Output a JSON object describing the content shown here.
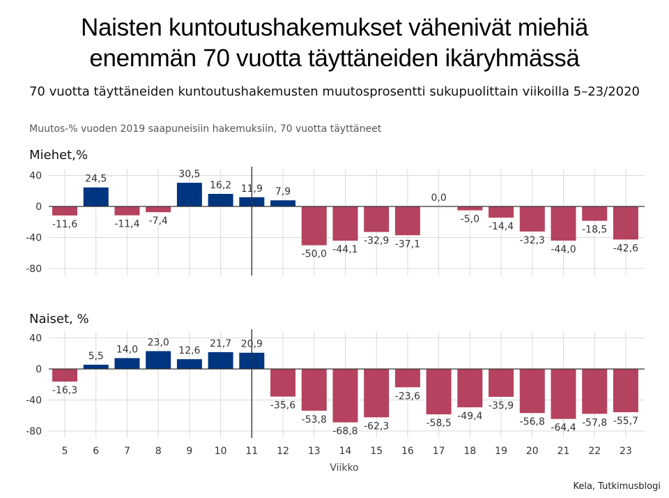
{
  "title_line1": "Naisten kuntoutushakemukset vähenivät miehiä",
  "title_line2": "enemmän 70 vuotta täyttäneiden ikäryhmässä",
  "subtitle": "70 vuotta täyttäneiden kuntoutushakemusten muutosprosentti sukupuolittain viikoilla 5–23/2020",
  "note": "Muutos-% vuoden 2019 saapuneisiin hakemuksiin, 70 vuotta täyttäneet",
  "source": "Kela, Tutkimusblogi",
  "colors": {
    "positive": "#003580",
    "negative": "#b5425e",
    "zero_line": "#333333",
    "grid": "#d9d9d9",
    "marker": "#333333"
  },
  "chart_data": [
    {
      "type": "bar",
      "title": "Miehet,%",
      "categories": [
        "5",
        "6",
        "7",
        "8",
        "9",
        "10",
        "11",
        "12",
        "13",
        "14",
        "15",
        "16",
        "17",
        "18",
        "19",
        "20",
        "21",
        "22",
        "23"
      ],
      "values": [
        -11.6,
        24.5,
        -11.4,
        -7.4,
        30.5,
        16.2,
        11.9,
        7.9,
        -50.0,
        -44.1,
        -32.9,
        -37.1,
        0.0,
        -5.0,
        -14.4,
        -32.3,
        -44.0,
        -18.5,
        -42.6
      ],
      "value_labels": [
        "-11,6",
        "24,5",
        "-11,4",
        "-7,4",
        "30,5",
        "16,2",
        "11,9",
        "7,9",
        "-50,0",
        "-44,1",
        "-32,9",
        "-37,1",
        "0,0",
        "-5,0",
        "-14,4",
        "-32,3",
        "-44,0",
        "-18,5",
        "-42,6"
      ],
      "yticks": [
        40,
        0,
        -40,
        -80
      ],
      "ytick_labels": [
        "40",
        "0",
        "-40",
        "-80"
      ],
      "ylim": [
        -88,
        48
      ],
      "colored_through_week": "11",
      "marker_after_week": "11",
      "grid": true
    },
    {
      "type": "bar",
      "title": "Naiset, %",
      "categories": [
        "5",
        "6",
        "7",
        "8",
        "9",
        "10",
        "11",
        "12",
        "13",
        "14",
        "15",
        "16",
        "17",
        "18",
        "19",
        "20",
        "21",
        "22",
        "23"
      ],
      "values": [
        -16.3,
        5.5,
        14.0,
        23.0,
        12.6,
        21.7,
        20.9,
        -35.6,
        -53.8,
        -68.8,
        -62.3,
        -23.6,
        -58.5,
        -49.4,
        -35.9,
        -56.8,
        -64.4,
        -57.8,
        -55.7
      ],
      "value_labels": [
        "-16,3",
        "5,5",
        "14,0",
        "23,0",
        "12,6",
        "21,7",
        "20,9",
        "-35,6",
        "-53,8",
        "-68,8",
        "-62,3",
        "-23,6",
        "-58,5",
        "-49,4",
        "-35,9",
        "-56,8",
        "-64,4",
        "-57,8",
        "-55,7"
      ],
      "yticks": [
        40,
        0,
        -40,
        -80
      ],
      "ytick_labels": [
        "40",
        "0",
        "-40",
        "-80"
      ],
      "ylim": [
        -88,
        48
      ],
      "colored_through_week": "11",
      "marker_after_week": "11",
      "grid": true,
      "xlabel": "Viikko"
    }
  ]
}
